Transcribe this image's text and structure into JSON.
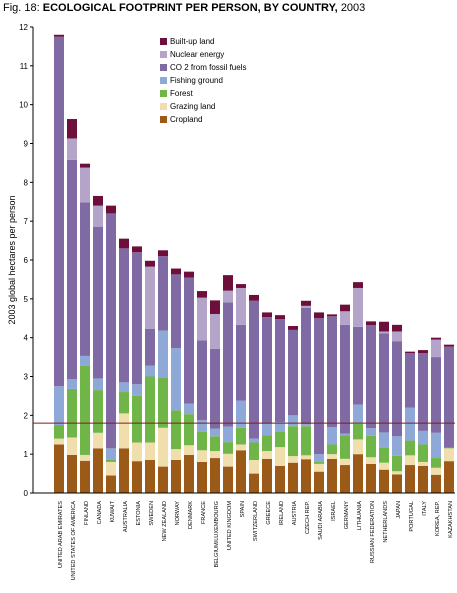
{
  "title": {
    "prefix": "Fig. 18:",
    "main": "ECOLOGICAL FOOTPRINT PER PERSON, BY COUNTRY,",
    "year": "2003"
  },
  "colors": {
    "built_up_land": "#6e0e3a",
    "nuclear_energy": "#b4a4c9",
    "co2_from_fossil_fuels": "#7f6aa4",
    "fishing_ground": "#8ea8d8",
    "forest": "#6fb548",
    "grazing_land": "#f0dfad",
    "cropland": "#9c5a18",
    "reference_line": "#7a1f1f"
  },
  "legend": [
    {
      "key": "built_up_land",
      "label": "Built-up land"
    },
    {
      "key": "nuclear_energy",
      "label": "Nuclear energy"
    },
    {
      "key": "co2_from_fossil_fuels",
      "label": "CO 2 from fossil fuels"
    },
    {
      "key": "fishing_ground",
      "label": "Fishing ground"
    },
    {
      "key": "forest",
      "label": "Forest"
    },
    {
      "key": "grazing_land",
      "label": " Grazing land"
    },
    {
      "key": "cropland",
      "label": "Cropland"
    }
  ],
  "chart_data": {
    "type": "bar",
    "stacked": true,
    "title": "ECOLOGICAL FOOTPRINT PER PERSON, BY COUNTRY, 2003",
    "xlabel": "",
    "ylabel": "2003 global hectares per person",
    "ylim": [
      0,
      12
    ],
    "yticks": [
      0,
      1,
      2,
      3,
      4,
      5,
      6,
      7,
      8,
      9,
      10,
      11,
      12
    ],
    "reference_line": 1.8,
    "legend_position": "top-center",
    "categories": [
      "UNITED ARAB EMIRATES",
      "UNITED STATES OF AMERICA",
      "FINLAND",
      "CANADA",
      "KUWAIT",
      "AUSTRALIA",
      "ESTONIA",
      "SWEDEN",
      "NEW ZEALAND",
      "NORWAY",
      "DENMARK",
      "FRANCE",
      "BELGIUM/LUXEMBOURG",
      "UNITED KINGDOM",
      "SPAIN",
      "SWITZERLAND",
      "GREECE",
      "IRELAND",
      "AUSTRIA",
      "CZECH REP.",
      "SAUDI ARABIA",
      "ISRAEL",
      "GERMANY",
      "LITHUANIA",
      "RUSSIAN FEDERATION",
      "NETHERLANDS",
      "JAPAN",
      "PORTUGAL",
      "ITALY",
      "KOREA, REP.",
      "KAZAKHSTAN"
    ],
    "series": [
      {
        "name": "Cropland",
        "values": [
          1.25,
          0.98,
          0.83,
          1.15,
          0.45,
          1.15,
          0.82,
          0.85,
          0.68,
          0.85,
          0.98,
          0.8,
          0.9,
          0.68,
          1.1,
          0.5,
          0.88,
          0.7,
          0.78,
          0.87,
          0.55,
          0.88,
          0.72,
          1.0,
          0.75,
          0.6,
          0.48,
          0.72,
          0.7,
          0.47,
          0.82
        ]
      },
      {
        "name": "Grazing land",
        "values": [
          0.15,
          0.45,
          0.15,
          0.4,
          0.35,
          0.9,
          0.48,
          0.45,
          1.0,
          0.28,
          0.25,
          0.3,
          0.18,
          0.33,
          0.15,
          0.35,
          0.2,
          0.48,
          0.17,
          0.1,
          0.2,
          0.12,
          0.16,
          0.38,
          0.17,
          0.18,
          0.08,
          0.25,
          0.1,
          0.18,
          0.33
        ]
      },
      {
        "name": "Forest",
        "values": [
          0.35,
          1.25,
          2.3,
          1.1,
          0.05,
          0.55,
          1.2,
          1.7,
          1.3,
          1.0,
          0.8,
          0.48,
          0.38,
          0.3,
          0.43,
          0.45,
          0.4,
          0.4,
          0.77,
          0.75,
          0.05,
          0.25,
          0.6,
          0.4,
          0.55,
          0.38,
          0.4,
          0.38,
          0.45,
          0.25,
          0.02
        ]
      },
      {
        "name": "Fishing ground",
        "values": [
          1.0,
          0.25,
          0.25,
          0.3,
          0.3,
          0.25,
          0.3,
          0.28,
          1.2,
          1.6,
          0.27,
          0.3,
          0.2,
          0.4,
          0.7,
          0.1,
          0.3,
          0.25,
          0.28,
          0.05,
          0.2,
          0.45,
          0.05,
          0.5,
          0.2,
          0.4,
          0.5,
          0.85,
          0.35,
          0.65,
          0.0
        ]
      },
      {
        "name": "CO 2 from fossil fuels",
        "values": [
          9.0,
          5.65,
          3.95,
          3.9,
          6.05,
          3.45,
          3.4,
          0.95,
          1.92,
          1.9,
          3.25,
          2.05,
          2.05,
          3.2,
          1.95,
          3.55,
          2.75,
          2.65,
          2.2,
          3.0,
          3.5,
          2.85,
          2.8,
          2.0,
          2.65,
          2.55,
          2.45,
          1.4,
          2.0,
          1.95,
          2.6
        ]
      },
      {
        "name": "Nuclear energy",
        "values": [
          0.0,
          0.55,
          0.9,
          0.55,
          0.0,
          0.0,
          0.0,
          1.6,
          0.0,
          0.0,
          0.0,
          1.1,
          0.9,
          0.3,
          0.95,
          0.0,
          0.0,
          0.0,
          0.0,
          0.05,
          0.0,
          0.0,
          0.35,
          1.0,
          0.0,
          0.05,
          0.25,
          0.0,
          0.0,
          0.45,
          0.0
        ]
      },
      {
        "name": "Built-up land",
        "values": [
          0.05,
          0.5,
          0.1,
          0.25,
          0.2,
          0.25,
          0.15,
          0.15,
          0.15,
          0.15,
          0.15,
          0.17,
          0.35,
          0.4,
          0.1,
          0.15,
          0.12,
          0.1,
          0.1,
          0.13,
          0.15,
          0.05,
          0.17,
          0.15,
          0.1,
          0.25,
          0.17,
          0.04,
          0.08,
          0.05,
          0.05
        ]
      }
    ]
  }
}
